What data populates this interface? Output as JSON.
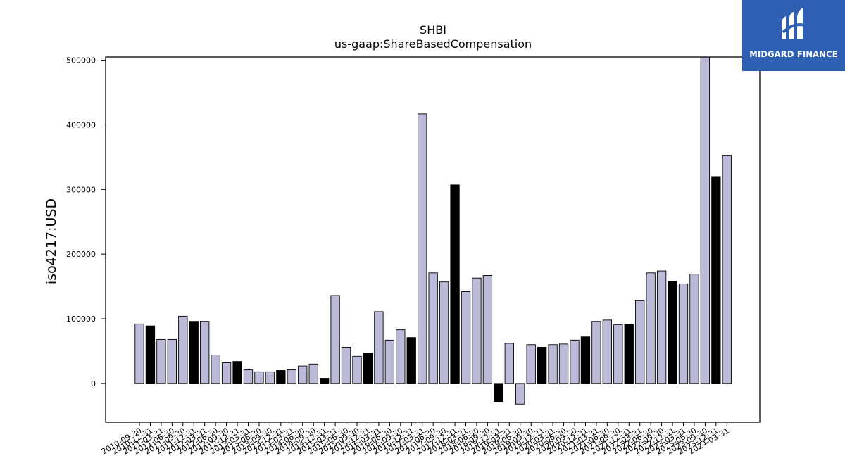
{
  "chart_data": {
    "type": "bar",
    "title": "SHBI",
    "subtitle": "us-gaap:ShareBasedCompensation",
    "xlabel": "",
    "ylabel": "iso4217:USD",
    "ylim": [
      -60000,
      505000
    ],
    "yticks": [
      0,
      100000,
      200000,
      300000,
      400000,
      500000
    ],
    "grid": false,
    "colors": {
      "quarterly": "#bcbad9",
      "annual": "#000000",
      "edge": "#000000"
    },
    "categories": [
      "2010-09-30",
      "2010-12-31",
      "2011-03-31",
      "2011-06-30",
      "2011-09-30",
      "2011-12-31",
      "2012-03-31",
      "2012-06-30",
      "2012-09-30",
      "2012-12-31",
      "2013-03-31",
      "2013-06-30",
      "2013-09-30",
      "2013-12-31",
      "2014-03-31",
      "2014-06-30",
      "2014-09-30",
      "2014-12-31",
      "2015-03-31",
      "2015-06-30",
      "2015-09-30",
      "2015-12-31",
      "2016-03-31",
      "2016-06-30",
      "2016-09-30",
      "2016-12-31",
      "2017-03-31",
      "2017-06-30",
      "2017-09-30",
      "2017-12-31",
      "2018-03-31",
      "2018-06-30",
      "2018-09-30",
      "2018-12-31",
      "2019-03-31",
      "2019-06-30",
      "2019-09-30",
      "2019-12-31",
      "2020-03-31",
      "2020-06-30",
      "2020-09-30",
      "2020-12-31",
      "2021-03-31",
      "2021-06-30",
      "2021-09-30",
      "2021-12-31",
      "2022-03-31",
      "2022-06-30",
      "2022-09-30",
      "2022-12-31",
      "2023-03-31",
      "2023-06-30",
      "2023-09-30",
      "2023-12-31",
      "2024-03-31"
    ],
    "values": [
      92000,
      89000,
      68000,
      68000,
      104000,
      96000,
      96000,
      44000,
      32000,
      34000,
      21000,
      18000,
      18000,
      20000,
      21000,
      27000,
      30000,
      8000,
      136000,
      56000,
      42000,
      47000,
      111000,
      67000,
      83000,
      71000,
      417000,
      171000,
      157000,
      307000,
      142000,
      163000,
      167000,
      -28000,
      62000,
      -32000,
      60000,
      56000,
      60000,
      61000,
      67000,
      72000,
      96000,
      98000,
      91000,
      91000,
      128000,
      171000,
      174000,
      158000,
      154000,
      169000,
      511000,
      320000,
      353000
    ],
    "is_annual": [
      false,
      true,
      false,
      false,
      false,
      true,
      false,
      false,
      false,
      true,
      false,
      false,
      false,
      true,
      false,
      false,
      false,
      true,
      false,
      false,
      false,
      true,
      false,
      false,
      false,
      true,
      false,
      false,
      false,
      true,
      false,
      false,
      false,
      true,
      false,
      false,
      false,
      true,
      false,
      false,
      false,
      true,
      false,
      false,
      false,
      true,
      false,
      false,
      false,
      true,
      false,
      false,
      false,
      true,
      false
    ]
  },
  "logo": {
    "text": "MIDGARD FINANCE",
    "icon": "midgard-finance-logo-icon"
  }
}
